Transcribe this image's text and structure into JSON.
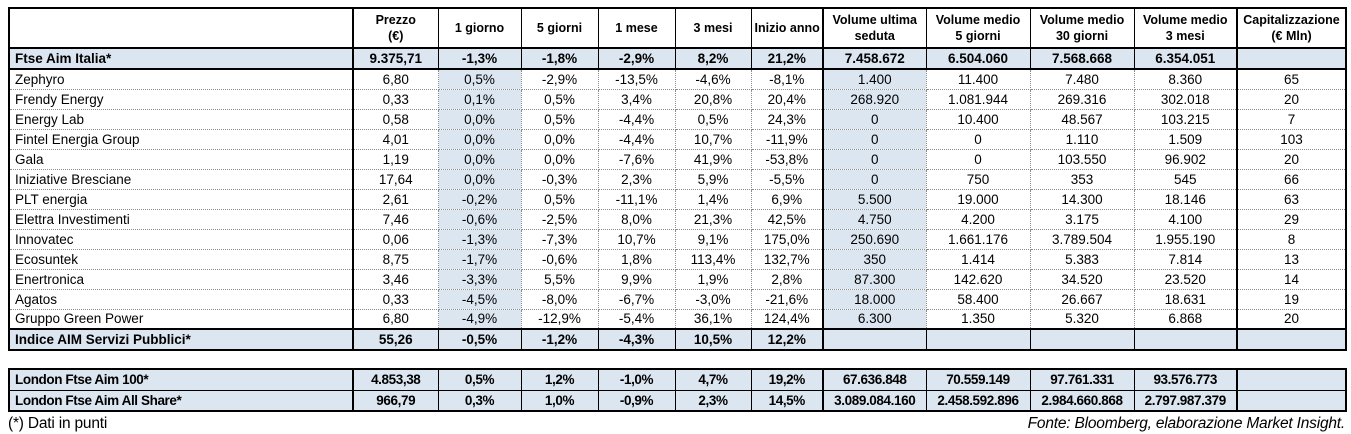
{
  "colors": {
    "row_highlight": "#dce6f1"
  },
  "chart_data": {
    "type": "table",
    "columns": [
      {
        "id": "name",
        "l1": "",
        "l2": ""
      },
      {
        "id": "prezzo",
        "l1": "Prezzo",
        "l2": "(€)"
      },
      {
        "id": "1-giorno",
        "l1": "1 giorno",
        "l2": ""
      },
      {
        "id": "5-giorni",
        "l1": "5 giorni",
        "l2": ""
      },
      {
        "id": "1-mese",
        "l1": "1 mese",
        "l2": ""
      },
      {
        "id": "3-mesi",
        "l1": "3 mesi",
        "l2": ""
      },
      {
        "id": "inizio-anno",
        "l1": "Inizio anno",
        "l2": ""
      },
      {
        "id": "volume-ultima-seduta",
        "l1": "Volume ultima",
        "l2": "seduta"
      },
      {
        "id": "volume-medio-5-giorni",
        "l1": "Volume medio",
        "l2": "5 giorni"
      },
      {
        "id": "volume-medio-30-giorni",
        "l1": "Volume medio",
        "l2": "30 giorni"
      },
      {
        "id": "volume-medio-3-mesi",
        "l1": "Volume medio",
        "l2": "3 mesi"
      },
      {
        "id": "capitalizzazione",
        "l1": "Capitalizzazione",
        "l2": "(€ Mln)"
      }
    ],
    "main_rows": [
      {
        "type": "index",
        "cells": [
          "Ftse Aim Italia*",
          "9.375,71",
          "-1,3%",
          "-1,8%",
          "-2,9%",
          "8,2%",
          "21,2%",
          "7.458.672",
          "6.504.060",
          "7.568.668",
          "6.354.051",
          ""
        ]
      },
      {
        "type": "stock",
        "cells": [
          "Zephyro",
          "6,80",
          "0,5%",
          "-2,9%",
          "-13,5%",
          "-4,6%",
          "-8,1%",
          "1.400",
          "11.400",
          "7.480",
          "8.360",
          "65"
        ]
      },
      {
        "type": "stock",
        "cells": [
          "Frendy Energy",
          "0,33",
          "0,1%",
          "0,5%",
          "3,4%",
          "20,8%",
          "20,4%",
          "268.920",
          "1.081.944",
          "269.316",
          "302.018",
          "20"
        ]
      },
      {
        "type": "stock",
        "cells": [
          "Energy Lab",
          "0,58",
          "0,0%",
          "0,5%",
          "-4,4%",
          "0,5%",
          "24,3%",
          "0",
          "10.400",
          "48.567",
          "103.215",
          "7"
        ]
      },
      {
        "type": "stock",
        "cells": [
          "Fintel Energia Group",
          "4,01",
          "0,0%",
          "0,0%",
          "-4,4%",
          "10,7%",
          "-11,9%",
          "0",
          "0",
          "1.110",
          "1.509",
          "103"
        ]
      },
      {
        "type": "stock",
        "cells": [
          "Gala",
          "1,19",
          "0,0%",
          "0,0%",
          "-7,6%",
          "41,9%",
          "-53,8%",
          "0",
          "0",
          "103.550",
          "96.902",
          "20"
        ]
      },
      {
        "type": "stock",
        "cells": [
          "Iniziative Bresciane",
          "17,64",
          "0,0%",
          "-0,3%",
          "2,3%",
          "5,9%",
          "-5,5%",
          "0",
          "750",
          "353",
          "545",
          "66"
        ]
      },
      {
        "type": "stock",
        "cells": [
          "PLT energia",
          "2,61",
          "-0,2%",
          "0,5%",
          "-11,1%",
          "1,4%",
          "6,9%",
          "5.500",
          "19.000",
          "14.300",
          "18.146",
          "63"
        ]
      },
      {
        "type": "stock",
        "cells": [
          "Elettra Investimenti",
          "7,46",
          "-0,6%",
          "-2,5%",
          "8,0%",
          "21,3%",
          "42,5%",
          "4.750",
          "4.200",
          "3.175",
          "4.100",
          "29"
        ]
      },
      {
        "type": "stock",
        "cells": [
          "Innovatec",
          "0,06",
          "-1,3%",
          "-7,3%",
          "10,7%",
          "9,1%",
          "175,0%",
          "250.690",
          "1.661.176",
          "3.789.504",
          "1.955.190",
          "8"
        ]
      },
      {
        "type": "stock",
        "cells": [
          "Ecosuntek",
          "8,75",
          "-1,7%",
          "-0,6%",
          "1,8%",
          "113,4%",
          "132,7%",
          "350",
          "1.414",
          "5.383",
          "7.814",
          "13"
        ]
      },
      {
        "type": "stock",
        "cells": [
          "Enertronica",
          "3,46",
          "-3,3%",
          "5,5%",
          "9,9%",
          "1,9%",
          "2,8%",
          "87.300",
          "142.620",
          "34.520",
          "23.520",
          "14"
        ]
      },
      {
        "type": "stock",
        "cells": [
          "Agatos",
          "0,33",
          "-4,5%",
          "-8,0%",
          "-6,7%",
          "-3,0%",
          "-21,6%",
          "18.000",
          "58.400",
          "26.667",
          "18.631",
          "19"
        ]
      },
      {
        "type": "stock",
        "cells": [
          "Gruppo Green Power",
          "6,80",
          "-4,9%",
          "-12,9%",
          "-5,4%",
          "36,1%",
          "124,4%",
          "6.300",
          "1.350",
          "5.320",
          "6.868",
          "20"
        ]
      },
      {
        "type": "index",
        "cells": [
          "Indice AIM Servizi Pubblici*",
          "55,26",
          "-0,5%",
          "-1,2%",
          "-4,3%",
          "10,5%",
          "12,2%",
          "",
          "",
          "",
          "",
          ""
        ]
      }
    ],
    "london_rows": [
      {
        "type": "london",
        "cells": [
          "London Ftse Aim 100*",
          "4.853,38",
          "0,5%",
          "1,2%",
          "-1,0%",
          "4,7%",
          "19,2%",
          "67.636.848",
          "70.559.149",
          "97.761.331",
          "93.576.773",
          ""
        ]
      },
      {
        "type": "london",
        "cells": [
          "London Ftse Aim All Share*",
          "966,79",
          "0,3%",
          "1,0%",
          "-0,9%",
          "2,3%",
          "14,5%",
          "3.089.084.160",
          "2.458.592.896",
          "2.984.660.868",
          "2.797.987.379",
          ""
        ]
      }
    ],
    "footnote": "(*) Dati in punti",
    "source": "Fonte: Bloomberg, elaborazione Market Insight."
  }
}
